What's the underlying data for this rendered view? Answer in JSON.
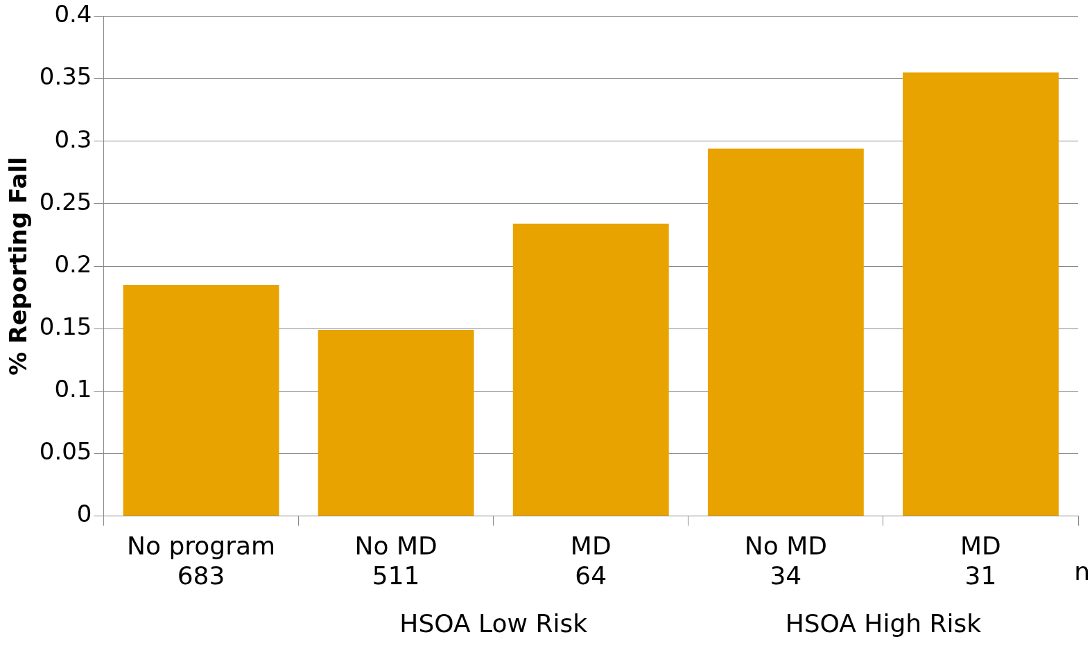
{
  "chart_data": {
    "type": "bar",
    "ylabel": "% Reporting Fall",
    "categories": [
      "No program\n683",
      "No MD\n511",
      "MD\n64",
      "No MD\n34",
      "MD\n31"
    ],
    "values": [
      0.185,
      0.149,
      0.234,
      0.294,
      0.355
    ],
    "color": "#e9a300",
    "ylim": [
      0,
      0.4
    ],
    "yticks": [
      0,
      0.05,
      0.1,
      0.15,
      0.2,
      0.25,
      0.3,
      0.35,
      0.4
    ],
    "grid": "y",
    "legend": false,
    "annotations": [
      "HSOA Low Risk",
      "HSOA High Risk",
      "n"
    ]
  }
}
